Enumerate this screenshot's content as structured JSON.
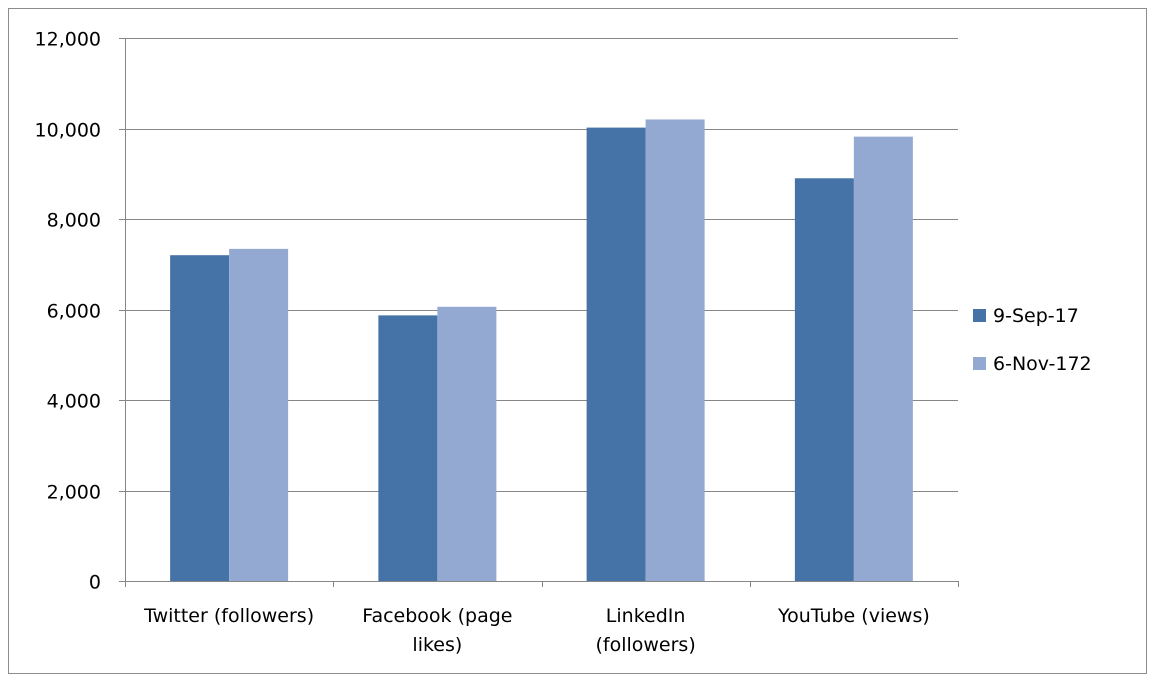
{
  "chart_data": {
    "type": "bar",
    "title": "",
    "xlabel": "",
    "ylabel": "",
    "categories": [
      "Twitter (followers)",
      "Facebook (page likes)",
      "LinkedIn (followers)",
      "YouTube (views)"
    ],
    "category_lines": [
      [
        "Twitter (followers)"
      ],
      [
        "Facebook (page",
        "likes)"
      ],
      [
        "LinkedIn",
        "(followers)"
      ],
      [
        "YouTube (views)"
      ]
    ],
    "series": [
      {
        "name": "9-Sep-17",
        "color": "#4572a7",
        "values": [
          7200,
          5870,
          10020,
          8900
        ]
      },
      {
        "name": "6-Nov-172",
        "color": "#94a9d2",
        "values": [
          7340,
          6060,
          10200,
          9820
        ]
      }
    ],
    "ylim": [
      0,
      12000
    ],
    "yticks": [
      0,
      2000,
      4000,
      6000,
      8000,
      10000,
      12000
    ],
    "ytick_labels": [
      "0",
      "2,000",
      "4,000",
      "6,000",
      "8,000",
      "10,000",
      "12,000"
    ],
    "grid": true,
    "legend_position": "right"
  }
}
